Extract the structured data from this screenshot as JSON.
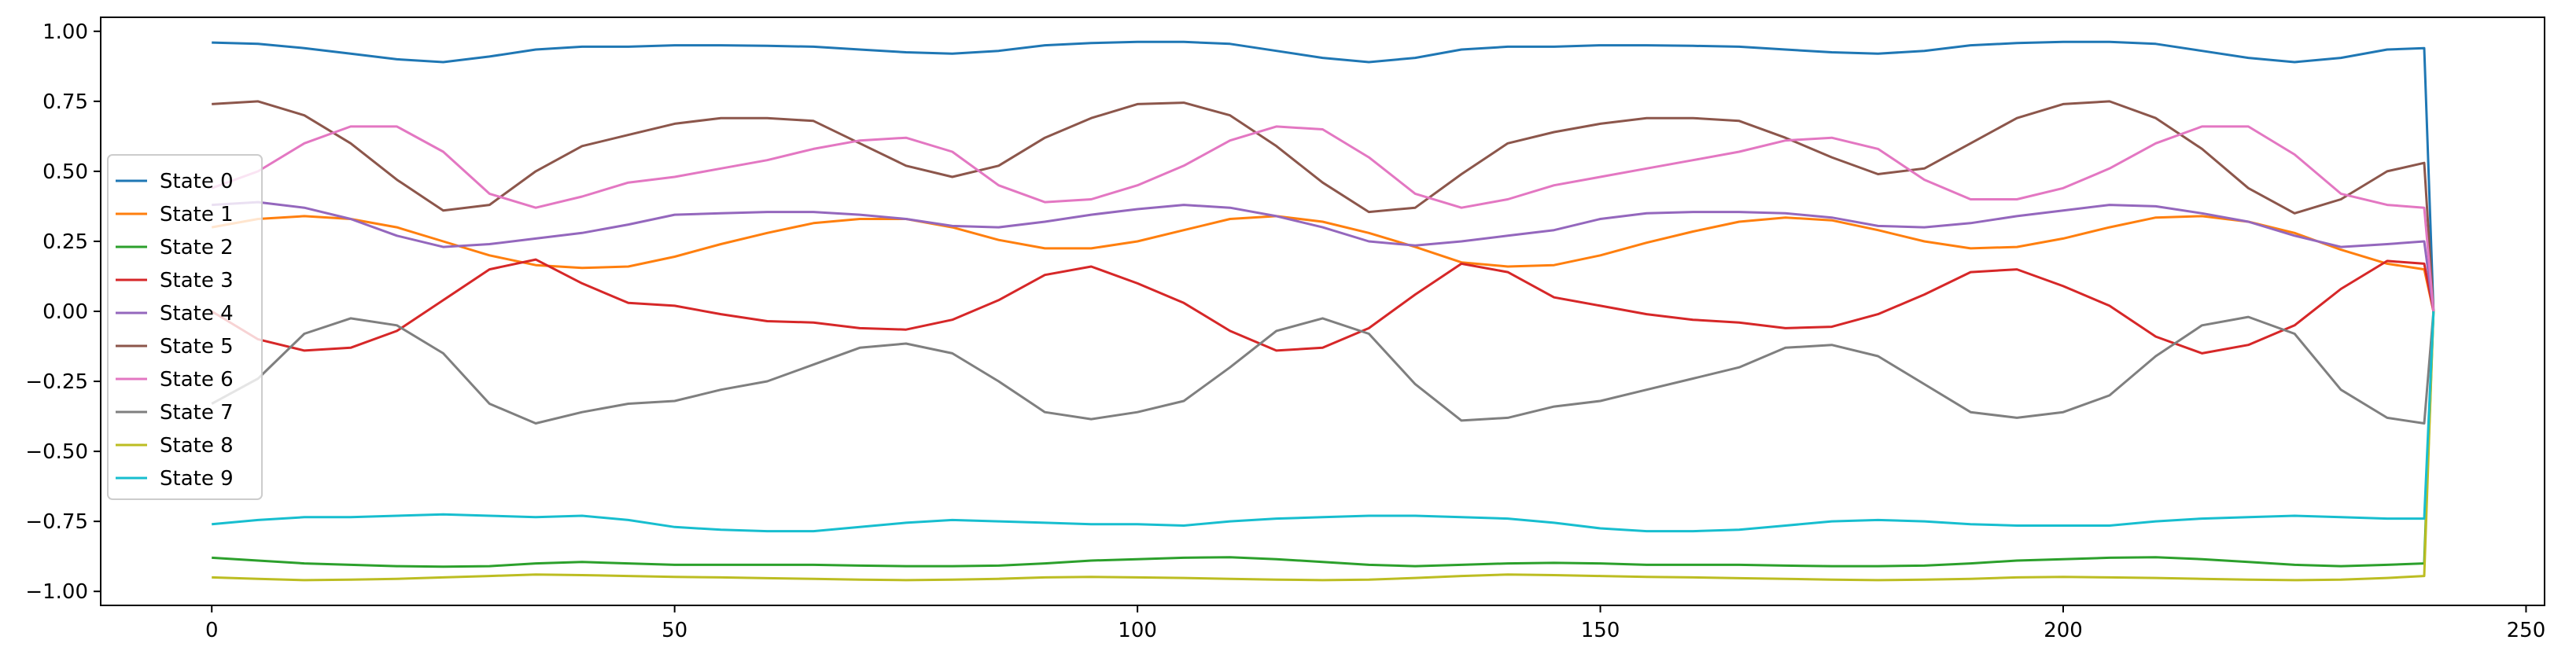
{
  "chart_data": {
    "type": "line",
    "title": "",
    "xlabel": "",
    "ylabel": "",
    "xlim": [
      -12,
      252
    ],
    "ylim": [
      -1.05,
      1.05
    ],
    "xticks": [
      0,
      50,
      100,
      150,
      200,
      250
    ],
    "xtick_labels": [
      "0",
      "50",
      "100",
      "150",
      "200",
      "250"
    ],
    "yticks": [
      -1.0,
      -0.75,
      -0.5,
      -0.25,
      0.0,
      0.25,
      0.5,
      0.75,
      1.0
    ],
    "ytick_labels": [
      "−1.00",
      "−0.75",
      "−0.50",
      "−0.25",
      "0.00",
      "0.25",
      "0.50",
      "0.75",
      "1.00"
    ],
    "grid": false,
    "legend_position": "center-left",
    "x": [
      0,
      5,
      10,
      15,
      20,
      25,
      30,
      35,
      40,
      45,
      50,
      55,
      60,
      65,
      70,
      75,
      80,
      85,
      90,
      95,
      100,
      105,
      110,
      115,
      120,
      125,
      130,
      135,
      140,
      145,
      150,
      155,
      160,
      165,
      170,
      175,
      180,
      185,
      190,
      195,
      200,
      205,
      210,
      215,
      220,
      225,
      230,
      235,
      239,
      240
    ],
    "series": [
      {
        "name": "State 0",
        "color": "#1f77b4",
        "values": [
          0.96,
          0.955,
          0.94,
          0.92,
          0.9,
          0.89,
          0.91,
          0.935,
          0.945,
          0.945,
          0.95,
          0.95,
          0.948,
          0.945,
          0.935,
          0.925,
          0.92,
          0.93,
          0.95,
          0.958,
          0.962,
          0.962,
          0.955,
          0.93,
          0.905,
          0.89,
          0.905,
          0.935,
          0.945,
          0.945,
          0.95,
          0.95,
          0.948,
          0.945,
          0.935,
          0.925,
          0.92,
          0.93,
          0.95,
          0.958,
          0.962,
          0.962,
          0.955,
          0.93,
          0.905,
          0.89,
          0.905,
          0.935,
          0.94,
          0.0
        ]
      },
      {
        "name": "State 1",
        "color": "#ff7f0e",
        "values": [
          0.3,
          0.33,
          0.34,
          0.33,
          0.3,
          0.25,
          0.2,
          0.165,
          0.155,
          0.16,
          0.195,
          0.24,
          0.28,
          0.315,
          0.33,
          0.33,
          0.3,
          0.255,
          0.225,
          0.225,
          0.25,
          0.29,
          0.33,
          0.34,
          0.32,
          0.28,
          0.23,
          0.175,
          0.16,
          0.165,
          0.2,
          0.245,
          0.285,
          0.32,
          0.335,
          0.325,
          0.29,
          0.25,
          0.225,
          0.23,
          0.26,
          0.3,
          0.335,
          0.34,
          0.32,
          0.28,
          0.22,
          0.17,
          0.15,
          0.0
        ]
      },
      {
        "name": "State 2",
        "color": "#2ca02c",
        "values": [
          -0.88,
          -0.89,
          -0.9,
          -0.905,
          -0.91,
          -0.912,
          -0.91,
          -0.9,
          -0.895,
          -0.9,
          -0.905,
          -0.905,
          -0.905,
          -0.905,
          -0.908,
          -0.91,
          -0.91,
          -0.908,
          -0.9,
          -0.89,
          -0.885,
          -0.88,
          -0.878,
          -0.885,
          -0.895,
          -0.905,
          -0.91,
          -0.905,
          -0.9,
          -0.898,
          -0.9,
          -0.905,
          -0.905,
          -0.905,
          -0.908,
          -0.91,
          -0.91,
          -0.908,
          -0.9,
          -0.89,
          -0.885,
          -0.88,
          -0.878,
          -0.885,
          -0.895,
          -0.905,
          -0.91,
          -0.905,
          -0.9,
          0.0
        ]
      },
      {
        "name": "State 3",
        "color": "#d62728",
        "values": [
          0.0,
          -0.1,
          -0.14,
          -0.13,
          -0.07,
          0.04,
          0.15,
          0.185,
          0.1,
          0.03,
          0.02,
          -0.01,
          -0.035,
          -0.04,
          -0.06,
          -0.065,
          -0.03,
          0.04,
          0.13,
          0.16,
          0.1,
          0.03,
          -0.07,
          -0.14,
          -0.13,
          -0.06,
          0.06,
          0.17,
          0.14,
          0.05,
          0.02,
          -0.01,
          -0.03,
          -0.04,
          -0.06,
          -0.055,
          -0.01,
          0.06,
          0.14,
          0.15,
          0.09,
          0.02,
          -0.09,
          -0.15,
          -0.12,
          -0.05,
          0.08,
          0.18,
          0.17,
          0.0
        ]
      },
      {
        "name": "State 4",
        "color": "#9467bd",
        "values": [
          0.38,
          0.39,
          0.37,
          0.33,
          0.27,
          0.23,
          0.24,
          0.26,
          0.28,
          0.31,
          0.345,
          0.35,
          0.355,
          0.355,
          0.345,
          0.33,
          0.305,
          0.3,
          0.32,
          0.345,
          0.365,
          0.38,
          0.37,
          0.34,
          0.3,
          0.25,
          0.235,
          0.25,
          0.27,
          0.29,
          0.33,
          0.35,
          0.355,
          0.355,
          0.35,
          0.335,
          0.305,
          0.3,
          0.315,
          0.34,
          0.36,
          0.38,
          0.375,
          0.35,
          0.32,
          0.27,
          0.23,
          0.24,
          0.25,
          0.0
        ]
      },
      {
        "name": "State 5",
        "color": "#8c564b",
        "values": [
          0.74,
          0.75,
          0.7,
          0.6,
          0.47,
          0.36,
          0.38,
          0.5,
          0.59,
          0.63,
          0.67,
          0.69,
          0.69,
          0.68,
          0.6,
          0.52,
          0.48,
          0.52,
          0.62,
          0.69,
          0.74,
          0.745,
          0.7,
          0.59,
          0.46,
          0.355,
          0.37,
          0.49,
          0.6,
          0.64,
          0.67,
          0.69,
          0.69,
          0.68,
          0.62,
          0.55,
          0.49,
          0.51,
          0.6,
          0.69,
          0.74,
          0.75,
          0.69,
          0.58,
          0.44,
          0.35,
          0.4,
          0.5,
          0.53,
          0.0
        ]
      },
      {
        "name": "State 6",
        "color": "#e377c2",
        "values": [
          0.44,
          0.5,
          0.6,
          0.66,
          0.66,
          0.57,
          0.42,
          0.37,
          0.41,
          0.46,
          0.48,
          0.51,
          0.54,
          0.58,
          0.61,
          0.62,
          0.57,
          0.45,
          0.39,
          0.4,
          0.45,
          0.52,
          0.61,
          0.66,
          0.65,
          0.55,
          0.42,
          0.37,
          0.4,
          0.45,
          0.48,
          0.51,
          0.54,
          0.57,
          0.61,
          0.62,
          0.58,
          0.47,
          0.4,
          0.4,
          0.44,
          0.51,
          0.6,
          0.66,
          0.66,
          0.56,
          0.42,
          0.38,
          0.37,
          0.0
        ]
      },
      {
        "name": "State 7",
        "color": "#7f7f7f",
        "values": [
          -0.33,
          -0.24,
          -0.08,
          -0.025,
          -0.05,
          -0.15,
          -0.33,
          -0.4,
          -0.36,
          -0.33,
          -0.32,
          -0.28,
          -0.25,
          -0.19,
          -0.13,
          -0.115,
          -0.15,
          -0.25,
          -0.36,
          -0.385,
          -0.36,
          -0.32,
          -0.2,
          -0.07,
          -0.025,
          -0.08,
          -0.26,
          -0.39,
          -0.38,
          -0.34,
          -0.32,
          -0.28,
          -0.24,
          -0.2,
          -0.13,
          -0.12,
          -0.16,
          -0.26,
          -0.36,
          -0.38,
          -0.36,
          -0.3,
          -0.16,
          -0.05,
          -0.02,
          -0.08,
          -0.28,
          -0.38,
          -0.4,
          0.0
        ]
      },
      {
        "name": "State 8",
        "color": "#bcbd22",
        "values": [
          -0.95,
          -0.955,
          -0.96,
          -0.958,
          -0.955,
          -0.95,
          -0.945,
          -0.94,
          -0.942,
          -0.945,
          -0.948,
          -0.95,
          -0.953,
          -0.955,
          -0.958,
          -0.96,
          -0.958,
          -0.955,
          -0.95,
          -0.948,
          -0.95,
          -0.952,
          -0.955,
          -0.958,
          -0.96,
          -0.958,
          -0.952,
          -0.945,
          -0.94,
          -0.942,
          -0.945,
          -0.948,
          -0.95,
          -0.953,
          -0.955,
          -0.958,
          -0.96,
          -0.958,
          -0.955,
          -0.95,
          -0.948,
          -0.95,
          -0.952,
          -0.955,
          -0.958,
          -0.96,
          -0.958,
          -0.952,
          -0.945,
          0.0
        ]
      },
      {
        "name": "State 9",
        "color": "#17becf",
        "values": [
          -0.76,
          -0.745,
          -0.735,
          -0.735,
          -0.73,
          -0.725,
          -0.73,
          -0.735,
          -0.73,
          -0.745,
          -0.77,
          -0.78,
          -0.785,
          -0.785,
          -0.77,
          -0.755,
          -0.745,
          -0.75,
          -0.755,
          -0.76,
          -0.76,
          -0.765,
          -0.75,
          -0.74,
          -0.735,
          -0.73,
          -0.73,
          -0.735,
          -0.74,
          -0.755,
          -0.775,
          -0.785,
          -0.785,
          -0.78,
          -0.765,
          -0.75,
          -0.745,
          -0.75,
          -0.76,
          -0.765,
          -0.765,
          -0.765,
          -0.75,
          -0.74,
          -0.735,
          -0.73,
          -0.735,
          -0.74,
          -0.74,
          0.0
        ]
      }
    ]
  }
}
